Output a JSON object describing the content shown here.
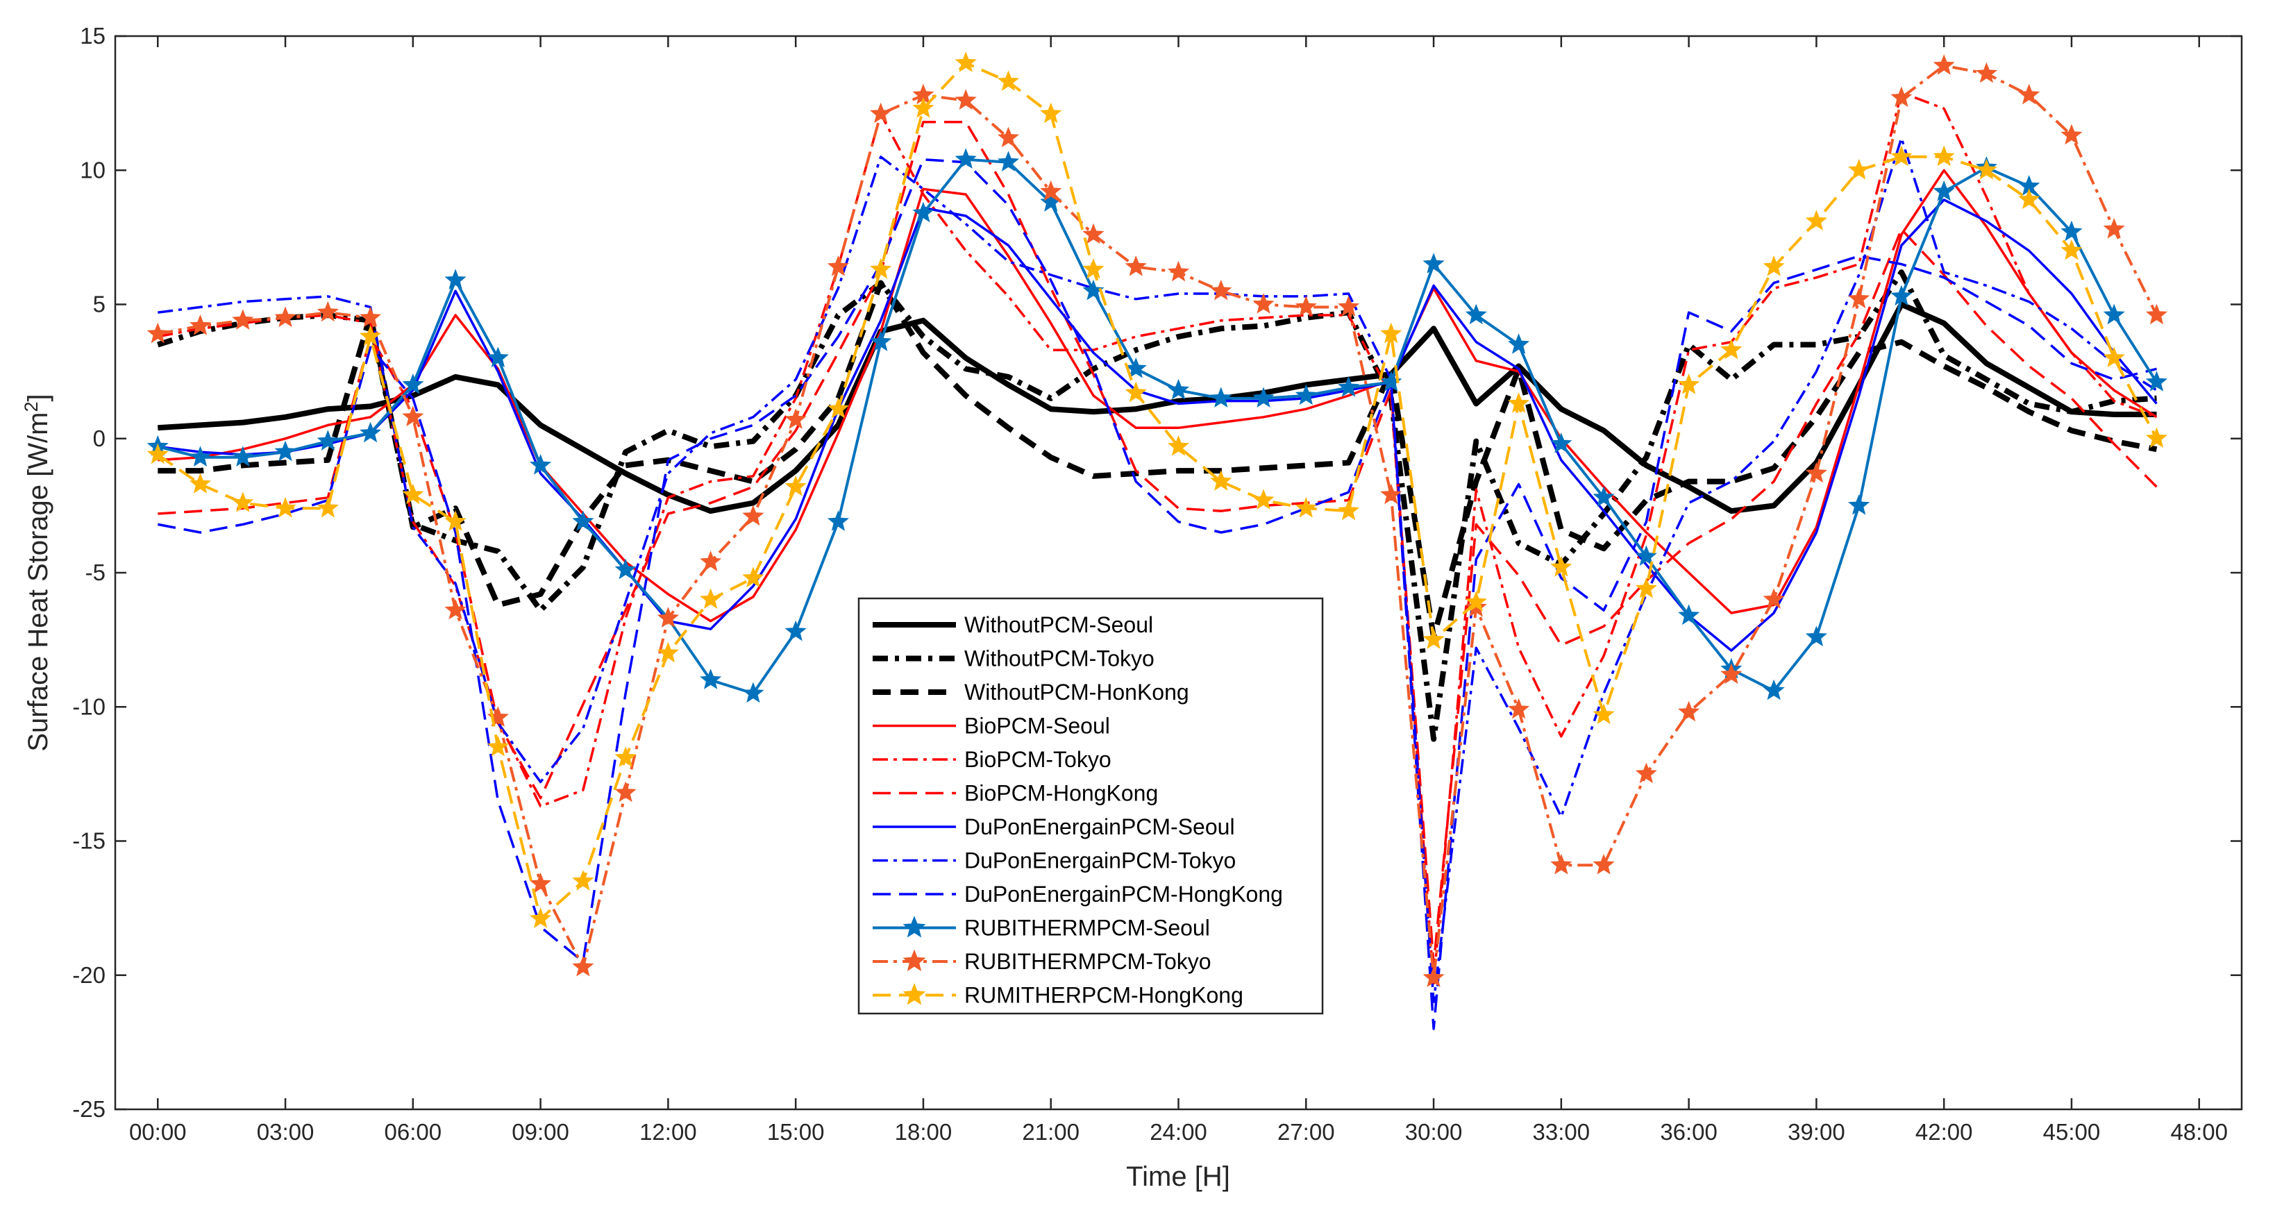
{
  "chart_data": {
    "type": "line",
    "title": "",
    "xlabel": "Time [H]",
    "ylabel_main": "Surface Heat Storage [W/m",
    "ylabel_sup": "2",
    "ylabel_close": "]",
    "xlim": [
      -1,
      49
    ],
    "ylim": [
      -25,
      15
    ],
    "xticks": [
      0,
      3,
      6,
      9,
      12,
      15,
      18,
      21,
      24,
      27,
      30,
      33,
      36,
      39,
      42,
      45,
      48
    ],
    "xtick_labels": [
      "00:00",
      "03:00",
      "06:00",
      "09:00",
      "12:00",
      "15:00",
      "18:00",
      "21:00",
      "24:00",
      "27:00",
      "30:00",
      "33:00",
      "36:00",
      "39:00",
      "42:00",
      "45:00",
      "48:00"
    ],
    "yticks": [
      -25,
      -20,
      -15,
      -10,
      -5,
      0,
      5,
      10,
      15
    ],
    "ytick_labels": [
      "-25",
      "-20",
      "-15",
      "-10",
      "-5",
      "0",
      "5",
      "10",
      "15"
    ],
    "x": [
      0,
      1,
      2,
      3,
      4,
      5,
      6,
      7,
      8,
      9,
      10,
      11,
      12,
      13,
      14,
      15,
      16,
      17,
      18,
      19,
      20,
      21,
      22,
      23,
      24,
      25,
      26,
      27,
      28,
      29,
      30,
      31,
      32,
      33,
      34,
      35,
      36,
      37,
      38,
      39,
      40,
      41,
      42,
      43,
      44,
      45,
      46,
      47
    ],
    "legend_position": "center",
    "series": [
      {
        "name": "WithoutPCM-Seoul",
        "color": "#000000",
        "width": 8,
        "dash": "",
        "marker": "none",
        "values": [
          0.4,
          0.5,
          0.6,
          0.8,
          1.1,
          1.2,
          1.6,
          2.3,
          2.0,
          0.5,
          -0.4,
          -1.3,
          -2.1,
          -2.7,
          -2.4,
          -1.2,
          0.5,
          4.0,
          4.4,
          3.0,
          2.0,
          1.1,
          1.0,
          1.1,
          1.4,
          1.5,
          1.7,
          2.0,
          2.2,
          2.4,
          4.1,
          1.3,
          2.7,
          1.1,
          0.3,
          -1.0,
          -1.8,
          -2.7,
          -2.5,
          -0.9,
          2.0,
          5.0,
          4.3,
          2.8,
          1.9,
          1.0,
          0.9,
          0.9
        ]
      },
      {
        "name": "WithoutPCM-Tokyo",
        "color": "#000000",
        "width": 8,
        "dash": "22,10,6,10",
        "marker": "none",
        "values": [
          3.5,
          4.0,
          4.3,
          4.5,
          4.6,
          4.4,
          -3.2,
          -3.8,
          -4.2,
          -6.4,
          -4.8,
          -0.5,
          0.3,
          -0.3,
          -0.1,
          1.6,
          4.6,
          5.8,
          3.8,
          2.6,
          2.3,
          1.5,
          2.6,
          3.3,
          3.8,
          4.1,
          4.2,
          4.5,
          4.7,
          1.5,
          -11.2,
          -0.1,
          -3.9,
          -4.7,
          -2.8,
          -0.7,
          3.5,
          2.2,
          3.5,
          3.5,
          3.8,
          6.2,
          3.1,
          2.2,
          1.3,
          1.0,
          1.4,
          1.5
        ]
      },
      {
        "name": "WithoutPCM-HonKong",
        "color": "#000000",
        "width": 8,
        "dash": "26,14",
        "marker": "none",
        "values": [
          -1.2,
          -1.2,
          -1.0,
          -0.9,
          -0.8,
          4.6,
          -3.3,
          -2.6,
          -6.2,
          -5.8,
          -3.0,
          -1.0,
          -0.8,
          -1.2,
          -1.6,
          -0.4,
          1.5,
          5.8,
          3.2,
          1.6,
          0.4,
          -0.7,
          -1.4,
          -1.3,
          -1.2,
          -1.2,
          -1.1,
          -1.0,
          -0.9,
          2.5,
          -7.4,
          -1.6,
          2.6,
          -3.4,
          -4.1,
          -2.3,
          -1.6,
          -1.6,
          -1.1,
          0.8,
          3.2,
          3.6,
          2.7,
          1.9,
          1.0,
          0.3,
          -0.1,
          -0.4
        ]
      },
      {
        "name": "BioPCM-Seoul",
        "color": "#FF0000",
        "width": 3.5,
        "dash": "",
        "marker": "none",
        "values": [
          -0.8,
          -0.7,
          -0.4,
          0.0,
          0.5,
          0.8,
          2.0,
          4.6,
          2.6,
          -1.0,
          -2.8,
          -4.6,
          -5.8,
          -6.8,
          -5.9,
          -3.4,
          0.2,
          4.0,
          9.3,
          9.1,
          6.8,
          4.3,
          1.6,
          0.4,
          0.4,
          0.6,
          0.8,
          1.1,
          1.6,
          2.2,
          5.6,
          2.9,
          2.5,
          0.0,
          -1.8,
          -3.5,
          -5.0,
          -6.5,
          -6.2,
          -3.3,
          2.0,
          7.6,
          10.0,
          7.9,
          5.4,
          3.2,
          1.8,
          0.8
        ]
      },
      {
        "name": "BioPCM-Tokyo",
        "color": "#FF0000",
        "width": 3.5,
        "dash": "22,8,5,8",
        "marker": "none",
        "values": [
          3.8,
          4.1,
          4.3,
          4.5,
          4.6,
          4.3,
          -3.1,
          -5.5,
          -10.5,
          -13.7,
          -13.1,
          -6.7,
          -2.2,
          -1.6,
          -1.4,
          1.5,
          6.4,
          12.1,
          9.1,
          7.0,
          5.3,
          3.3,
          3.3,
          3.8,
          4.1,
          4.4,
          4.5,
          4.6,
          4.6,
          1.6,
          -20.3,
          -1.9,
          -7.8,
          -11.1,
          -8.1,
          -3.6,
          3.3,
          3.6,
          5.6,
          6.0,
          6.5,
          12.9,
          12.3,
          9.0,
          5.4,
          3.2,
          1.4,
          0.8
        ]
      },
      {
        "name": "BioPCM-HongKong",
        "color": "#FF0000",
        "width": 3.5,
        "dash": "26,12",
        "marker": "none",
        "values": [
          -2.8,
          -2.7,
          -2.6,
          -2.4,
          -2.2,
          3.8,
          1.1,
          -3.5,
          -10.6,
          -13.4,
          -9.9,
          -6.4,
          -2.8,
          -2.4,
          -1.8,
          0.3,
          3.2,
          6.2,
          11.8,
          11.8,
          9.1,
          5.6,
          2.4,
          -1.2,
          -2.6,
          -2.7,
          -2.5,
          -2.4,
          -2.3,
          1.8,
          -19.6,
          -3.2,
          -5.1,
          -7.7,
          -7.0,
          -5.3,
          -3.9,
          -3.0,
          -1.6,
          1.3,
          3.9,
          7.8,
          6.1,
          4.2,
          2.7,
          1.5,
          -0.2,
          -1.8
        ]
      },
      {
        "name": "DuPonEnergainPCM-Seoul",
        "color": "#0000FF",
        "width": 3.5,
        "dash": "",
        "marker": "none",
        "values": [
          -0.3,
          -0.5,
          -0.6,
          -0.5,
          -0.2,
          0.2,
          1.8,
          5.5,
          2.5,
          -1.3,
          -3.0,
          -4.9,
          -6.8,
          -7.1,
          -5.5,
          -3.0,
          1.1,
          4.4,
          8.6,
          8.3,
          7.2,
          5.2,
          3.2,
          1.8,
          1.3,
          1.4,
          1.4,
          1.5,
          1.8,
          2.1,
          5.7,
          3.6,
          2.6,
          -0.8,
          -2.7,
          -4.7,
          -6.6,
          -7.9,
          -6.5,
          -3.5,
          1.6,
          7.2,
          8.9,
          8.1,
          7.0,
          5.4,
          3.2,
          1.3
        ]
      },
      {
        "name": "DuPonEnergainPCM-Tokyo",
        "color": "#0000FF",
        "width": 3.5,
        "dash": "22,8,5,8",
        "marker": "none",
        "values": [
          4.7,
          4.9,
          5.1,
          5.2,
          5.3,
          4.9,
          -3.3,
          -5.4,
          -10.6,
          -12.8,
          -10.8,
          -6.1,
          -1.3,
          0.2,
          0.8,
          2.2,
          5.6,
          10.5,
          9.3,
          8.0,
          6.6,
          6.1,
          5.6,
          5.2,
          5.4,
          5.4,
          5.3,
          5.3,
          5.4,
          2.2,
          -21.0,
          -7.8,
          -10.8,
          -14.1,
          -9.5,
          -5.8,
          -2.4,
          -1.6,
          -0.1,
          2.5,
          6.1,
          11.2,
          6.2,
          5.7,
          5.1,
          4.1,
          2.8,
          1.8
        ]
      },
      {
        "name": "DuPonEnergainPCM-HongKong",
        "color": "#0000FF",
        "width": 3.5,
        "dash": "26,12",
        "marker": "none",
        "values": [
          -3.2,
          -3.5,
          -3.2,
          -2.8,
          -2.3,
          3.4,
          1.5,
          -3.5,
          -13.5,
          -18.2,
          -19.5,
          -9.5,
          -0.8,
          0.0,
          0.5,
          1.6,
          3.8,
          6.5,
          10.4,
          10.3,
          8.7,
          5.9,
          2.6,
          -1.6,
          -3.1,
          -3.5,
          -3.2,
          -2.6,
          -2.0,
          2.1,
          -22.0,
          -4.5,
          -1.7,
          -5.2,
          -6.4,
          -3.1,
          4.7,
          4.0,
          5.8,
          6.3,
          6.8,
          6.5,
          6.0,
          5.1,
          4.2,
          2.8,
          2.2,
          2.6
        ]
      },
      {
        "name": "RUBITHERMPCM-Seoul",
        "color": "#0072BD",
        "width": 4,
        "dash": "",
        "marker": "star",
        "values": [
          -0.3,
          -0.7,
          -0.7,
          -0.5,
          -0.1,
          0.2,
          2.0,
          5.9,
          3.0,
          -1.0,
          -3.1,
          -4.9,
          -6.7,
          -9.0,
          -9.5,
          -7.2,
          -3.1,
          3.6,
          8.4,
          10.4,
          10.3,
          8.8,
          5.5,
          2.6,
          1.8,
          1.5,
          1.5,
          1.6,
          1.9,
          2.1,
          6.5,
          4.6,
          3.5,
          -0.2,
          -2.2,
          -4.4,
          -6.6,
          -8.6,
          -9.4,
          -7.4,
          -2.5,
          5.3,
          9.2,
          10.1,
          9.4,
          7.7,
          4.6,
          2.1
        ]
      },
      {
        "name": "RUBITHERMPCM-Tokyo",
        "color": "#F05A28",
        "width": 4,
        "dash": "22,8,5,8",
        "marker": "star",
        "values": [
          3.9,
          4.2,
          4.4,
          4.5,
          4.7,
          4.5,
          0.8,
          -6.4,
          -10.4,
          -16.6,
          -19.7,
          -13.2,
          -6.7,
          -4.6,
          -2.9,
          0.7,
          6.4,
          12.1,
          12.8,
          12.6,
          11.2,
          9.2,
          7.6,
          6.4,
          6.2,
          5.5,
          5.0,
          4.9,
          4.9,
          -2.1,
          -20.1,
          -6.3,
          -10.1,
          -15.9,
          -15.9,
          -12.5,
          -10.2,
          -8.8,
          -6.0,
          -1.3,
          5.2,
          12.7,
          13.9,
          13.6,
          12.8,
          11.3,
          7.8,
          4.6
        ]
      },
      {
        "name": "RUMITHERPCM-HongKong",
        "color": "#FFB300",
        "width": 4,
        "dash": "26,12",
        "marker": "star",
        "values": [
          -0.6,
          -1.7,
          -2.4,
          -2.6,
          -2.6,
          3.8,
          -2.1,
          -3.1,
          -11.5,
          -17.9,
          -16.5,
          -11.9,
          -8.0,
          -6.0,
          -5.2,
          -1.8,
          1.1,
          6.3,
          12.3,
          14.0,
          13.3,
          12.1,
          6.3,
          1.7,
          -0.3,
          -1.6,
          -2.3,
          -2.6,
          -2.7,
          3.9,
          -7.5,
          -6.1,
          1.3,
          -4.8,
          -10.3,
          -5.6,
          2.0,
          3.3,
          6.4,
          8.1,
          10.0,
          10.5,
          10.5,
          10.0,
          8.9,
          7.0,
          3.0,
          0.0
        ]
      }
    ]
  }
}
